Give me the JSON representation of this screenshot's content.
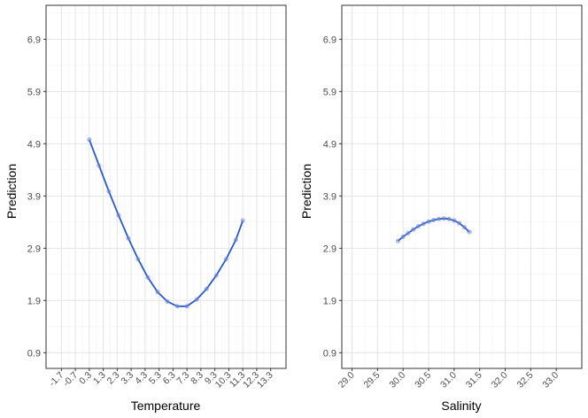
{
  "colors": {
    "line": "#2b58c9",
    "point": "#6f8ad6",
    "grid_major": "#e4e4e4",
    "grid_minor": "#f2f2f2",
    "frame": "#333333"
  },
  "chart_data": [
    {
      "type": "line",
      "xlabel": "Temperature",
      "ylabel": "Prediction",
      "xlim": [
        -2.8,
        14.4
      ],
      "ylim": [
        0.6,
        7.55
      ],
      "x_ticks": [
        -1.7,
        -0.7,
        0.3,
        1.3,
        2.3,
        3.3,
        4.3,
        5.3,
        6.3,
        7.3,
        8.3,
        9.3,
        10.3,
        11.3,
        12.3,
        13.3
      ],
      "x_tick_labels": [
        "-1.7",
        "-0.7",
        "0.3",
        "1.3",
        "2.3",
        "3.3",
        "4.3",
        "5.3",
        "6.3",
        "7.3",
        "8.3",
        "9.3",
        "10.3",
        "11.3",
        "12.3",
        "13.3"
      ],
      "y_ticks": [
        0.9,
        1.9,
        2.9,
        3.9,
        4.9,
        5.9,
        6.9
      ],
      "y_tick_labels": [
        "0.9",
        "1.9",
        "2.9",
        "3.9",
        "4.9",
        "5.9",
        "6.9"
      ],
      "grid": true,
      "series": [
        {
          "x": [
            0.3,
            1.0,
            1.7,
            2.4,
            3.1,
            3.8,
            4.5,
            5.2,
            5.9,
            6.6,
            7.3,
            8.0,
            8.7,
            9.4,
            10.1,
            10.8,
            11.3
          ],
          "y": [
            4.98,
            4.48,
            3.99,
            3.53,
            3.09,
            2.69,
            2.34,
            2.06,
            1.88,
            1.79,
            1.79,
            1.92,
            2.12,
            2.38,
            2.69,
            3.06,
            3.43
          ]
        }
      ]
    },
    {
      "type": "line",
      "xlabel": "Salinity",
      "ylabel": "Prediction",
      "xlim": [
        28.8,
        33.5
      ],
      "ylim": [
        0.6,
        7.55
      ],
      "x_ticks": [
        29.0,
        29.5,
        30.0,
        30.5,
        31.0,
        31.5,
        32.0,
        32.5,
        33.0
      ],
      "x_tick_labels": [
        "29.0",
        "29.5",
        "30.0",
        "30.5",
        "31.0",
        "31.5",
        "32.0",
        "32.5",
        "33.0"
      ],
      "y_ticks": [
        0.9,
        1.9,
        2.9,
        3.9,
        4.9,
        5.9,
        6.9
      ],
      "y_tick_labels": [
        "0.9",
        "1.9",
        "2.9",
        "3.9",
        "4.9",
        "5.9",
        "6.9"
      ],
      "grid": true,
      "series": [
        {
          "x": [
            29.9,
            30.0,
            30.1,
            30.2,
            30.3,
            30.4,
            30.5,
            30.6,
            30.7,
            30.8,
            30.9,
            31.0,
            31.1,
            31.2,
            31.3
          ],
          "y": [
            3.04,
            3.12,
            3.19,
            3.26,
            3.32,
            3.37,
            3.41,
            3.44,
            3.46,
            3.47,
            3.46,
            3.43,
            3.38,
            3.3,
            3.21
          ]
        }
      ]
    }
  ]
}
